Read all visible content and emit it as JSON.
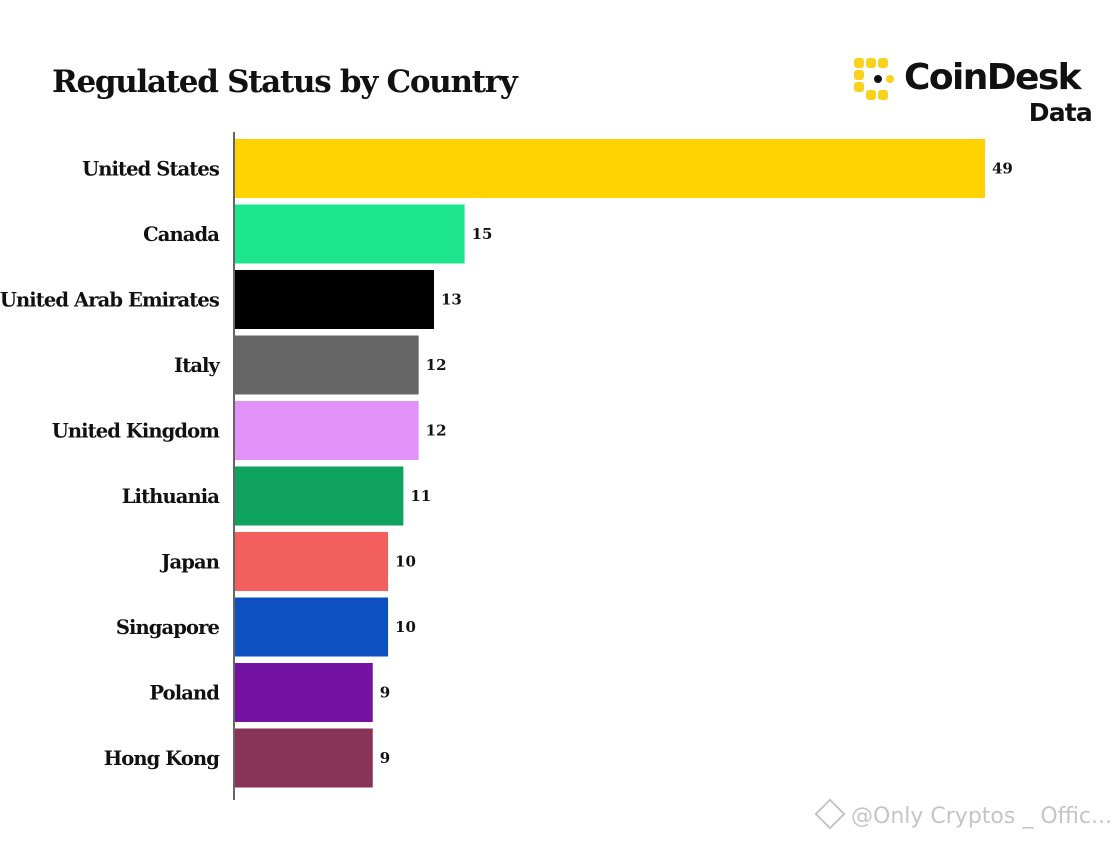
{
  "header": {
    "title": "Regulated Status by Country"
  },
  "logo": {
    "icon": "coindesk-logo-icon",
    "wordmark": "CoinDesk",
    "subtitle": "Data",
    "accent_color": "#F9D21C"
  },
  "chart_data": {
    "type": "bar",
    "orientation": "horizontal",
    "title": "Regulated Status by Country",
    "xlabel": "",
    "ylabel": "",
    "xlim": [
      0,
      49
    ],
    "grid": false,
    "legend": "none",
    "categories": [
      "United States",
      "Canada",
      "United Arab Emirates",
      "Italy",
      "United Kingdom",
      "Lithuania",
      "Japan",
      "Singapore",
      "Poland",
      "Hong Kong"
    ],
    "values": [
      49,
      15,
      13,
      12,
      12,
      11,
      10,
      10,
      9,
      9
    ],
    "colors": [
      "#FFD200",
      "#1DE58B",
      "#000000",
      "#666666",
      "#E293FA",
      "#0FA25E",
      "#F25F5C",
      "#0D50C2",
      "#7413A3",
      "#8A3358"
    ]
  },
  "watermark": {
    "icon": "binance-diamond-icon",
    "text": "@Only Cryptos _ Offic..."
  }
}
